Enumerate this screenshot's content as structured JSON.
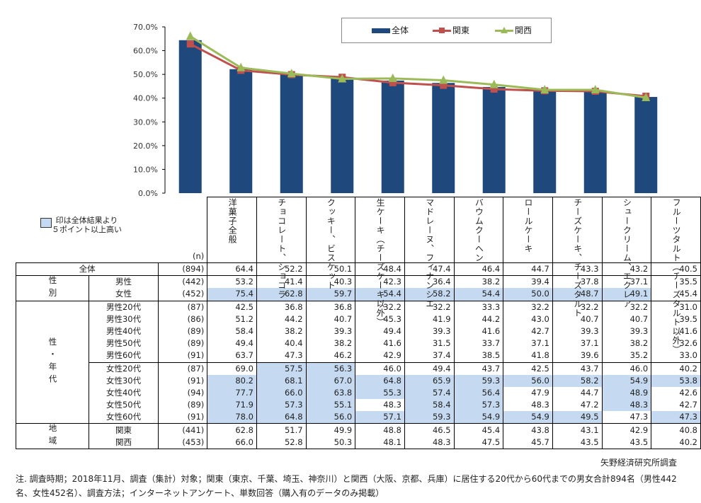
{
  "chart_data": {
    "type": "bar",
    "title": "",
    "xlabel": "",
    "ylabel": "",
    "ylim": [
      0,
      70
    ],
    "yticks": [
      "0.0%",
      "10.0%",
      "20.0%",
      "30.0%",
      "40.0%",
      "50.0%",
      "60.0%",
      "70.0%"
    ],
    "categories": [
      "洋菓子全般",
      "チョコレート、ショコラ",
      "クッキー、ビスケット",
      "生ケーキ（チーズケーキ以外）",
      "マドレーヌ、フィナンシエ",
      "バウムクーヘン",
      "ロールケーキ",
      "チーズケーキ、チーズタルト",
      "シュークリーム、エクレア",
      "フルーツタルト（チーズタルト以外）"
    ],
    "series": [
      {
        "name": "全体",
        "kind": "bar",
        "color": "#1f497d",
        "values": [
          64.4,
          52.2,
          50.1,
          48.4,
          47.4,
          46.4,
          44.7,
          43.3,
          43.2,
          40.5
        ]
      },
      {
        "name": "関東",
        "kind": "line",
        "marker": "square",
        "color": "#c0504d",
        "values": [
          62.8,
          51.7,
          49.9,
          48.8,
          46.5,
          45.4,
          43.8,
          43.1,
          42.9,
          40.8
        ]
      },
      {
        "name": "関西",
        "kind": "line",
        "marker": "triangle",
        "color": "#9bbb59",
        "values": [
          66.0,
          52.8,
          50.3,
          48.1,
          48.3,
          47.5,
          45.7,
          43.5,
          43.5,
          40.2
        ]
      }
    ],
    "legend": "top-right",
    "grid": false
  },
  "legend_items": [
    "全体",
    "関東",
    "関西"
  ],
  "note": {
    "highlight_legend": "印は全体結果より",
    "highlight_legend_2": "５ポイント以上高い",
    "highlight_color": "#c5d9f1"
  },
  "table": {
    "n_header": "(n)",
    "rows": [
      {
        "group": "全体",
        "label": "",
        "n": "(894)",
        "values": [
          "64.4",
          "52.2",
          "50.1",
          "48.4",
          "47.4",
          "46.4",
          "44.7",
          "43.3",
          "43.2",
          "40.5"
        ],
        "hl": [
          0,
          0,
          0,
          0,
          0,
          0,
          0,
          0,
          0,
          0
        ]
      },
      {
        "group": "性別",
        "label": "男性",
        "n": "(442)",
        "values": [
          "53.2",
          "41.4",
          "40.3",
          "42.3",
          "36.4",
          "38.2",
          "39.4",
          "37.8",
          "37.1",
          "35.5"
        ],
        "hl": [
          0,
          0,
          0,
          0,
          0,
          0,
          0,
          0,
          0,
          0
        ]
      },
      {
        "group": "性別",
        "label": "女性",
        "n": "(452)",
        "values": [
          "75.4",
          "62.8",
          "59.7",
          "54.4",
          "58.2",
          "54.4",
          "50.0",
          "48.7",
          "49.1",
          "45.4"
        ],
        "hl": [
          1,
          1,
          1,
          1,
          1,
          1,
          1,
          1,
          1,
          0
        ]
      },
      {
        "group": "性・年代",
        "label": "男性20代",
        "n": "(87)",
        "values": [
          "42.5",
          "36.8",
          "36.8",
          "32.2",
          "32.2",
          "33.3",
          "32.2",
          "32.2",
          "32.2",
          "31.0"
        ],
        "hl": [
          0,
          0,
          0,
          0,
          0,
          0,
          0,
          0,
          0,
          0
        ]
      },
      {
        "group": "性・年代",
        "label": "男性30代",
        "n": "(86)",
        "values": [
          "51.2",
          "44.2",
          "40.7",
          "45.3",
          "41.9",
          "44.2",
          "43.0",
          "40.7",
          "40.7",
          "39.5"
        ],
        "hl": [
          0,
          0,
          0,
          0,
          0,
          0,
          0,
          0,
          0,
          0
        ]
      },
      {
        "group": "性・年代",
        "label": "男性40代",
        "n": "(89)",
        "values": [
          "58.4",
          "38.2",
          "39.3",
          "49.4",
          "39.3",
          "41.6",
          "42.7",
          "39.3",
          "39.3",
          "41.6"
        ],
        "hl": [
          0,
          0,
          0,
          0,
          0,
          0,
          0,
          0,
          0,
          0
        ]
      },
      {
        "group": "性・年代",
        "label": "男性50代",
        "n": "(89)",
        "values": [
          "49.4",
          "40.4",
          "38.2",
          "41.6",
          "31.5",
          "33.7",
          "37.1",
          "37.1",
          "38.2",
          "32.6"
        ],
        "hl": [
          0,
          0,
          0,
          0,
          0,
          0,
          0,
          0,
          0,
          0
        ]
      },
      {
        "group": "性・年代",
        "label": "男性60代",
        "n": "(91)",
        "values": [
          "63.7",
          "47.3",
          "46.2",
          "42.9",
          "37.4",
          "38.5",
          "41.8",
          "39.6",
          "35.2",
          "33.0"
        ],
        "hl": [
          0,
          0,
          0,
          0,
          0,
          0,
          0,
          0,
          0,
          0
        ]
      },
      {
        "group": "性・年代",
        "label": "女性20代",
        "n": "(87)",
        "values": [
          "69.0",
          "57.5",
          "56.3",
          "46.0",
          "49.4",
          "43.7",
          "42.5",
          "43.7",
          "46.0",
          "40.2"
        ],
        "hl": [
          0,
          1,
          1,
          0,
          0,
          0,
          0,
          0,
          0,
          0
        ]
      },
      {
        "group": "性・年代",
        "label": "女性30代",
        "n": "(91)",
        "values": [
          "80.2",
          "68.1",
          "67.0",
          "64.8",
          "65.9",
          "59.3",
          "56.0",
          "58.2",
          "54.9",
          "53.8"
        ],
        "hl": [
          1,
          1,
          1,
          1,
          1,
          1,
          1,
          1,
          1,
          1
        ]
      },
      {
        "group": "性・年代",
        "label": "女性40代",
        "n": "(94)",
        "values": [
          "77.7",
          "66.0",
          "63.8",
          "55.3",
          "57.4",
          "56.4",
          "47.9",
          "44.7",
          "48.9",
          "42.6"
        ],
        "hl": [
          1,
          1,
          1,
          1,
          1,
          1,
          0,
          0,
          1,
          0
        ]
      },
      {
        "group": "性・年代",
        "label": "女性50代",
        "n": "(89)",
        "values": [
          "71.9",
          "57.3",
          "55.1",
          "48.3",
          "58.4",
          "57.3",
          "48.3",
          "47.2",
          "48.3",
          "42.7"
        ],
        "hl": [
          1,
          1,
          1,
          0,
          1,
          1,
          0,
          0,
          1,
          0
        ]
      },
      {
        "group": "性・年代",
        "label": "女性60代",
        "n": "(91)",
        "values": [
          "78.0",
          "64.8",
          "56.0",
          "57.1",
          "59.3",
          "54.9",
          "54.9",
          "49.5",
          "47.3",
          "47.3"
        ],
        "hl": [
          1,
          1,
          1,
          1,
          1,
          1,
          1,
          1,
          0,
          1
        ]
      },
      {
        "group": "地域",
        "label": "関東",
        "n": "(441)",
        "values": [
          "62.8",
          "51.7",
          "49.9",
          "48.8",
          "46.5",
          "45.4",
          "43.8",
          "43.1",
          "42.9",
          "40.8"
        ],
        "hl": [
          0,
          0,
          0,
          0,
          0,
          0,
          0,
          0,
          0,
          0
        ]
      },
      {
        "group": "地域",
        "label": "関西",
        "n": "(453)",
        "values": [
          "66.0",
          "52.8",
          "50.3",
          "48.1",
          "48.3",
          "47.5",
          "45.7",
          "43.5",
          "43.5",
          "40.2"
        ],
        "hl": [
          0,
          0,
          0,
          0,
          0,
          0,
          0,
          0,
          0,
          0
        ]
      }
    ],
    "group_labels": {
      "total": "全体",
      "gender": "性別",
      "gender_age": "性・年代",
      "region": "地域"
    }
  },
  "source": "矢野経済研究所調査",
  "footnote": "注. 調査時期；2018年11月、調査（集計）対象；関東（東京、千葉、埼玉、神奈川）と関西（大阪、京都、兵庫）に居住する20代から60代までの男女合計894名（男性442名、女性452名）、調査方法；インターネットアンケート、単数回答（購入有のデータのみ掲載）"
}
